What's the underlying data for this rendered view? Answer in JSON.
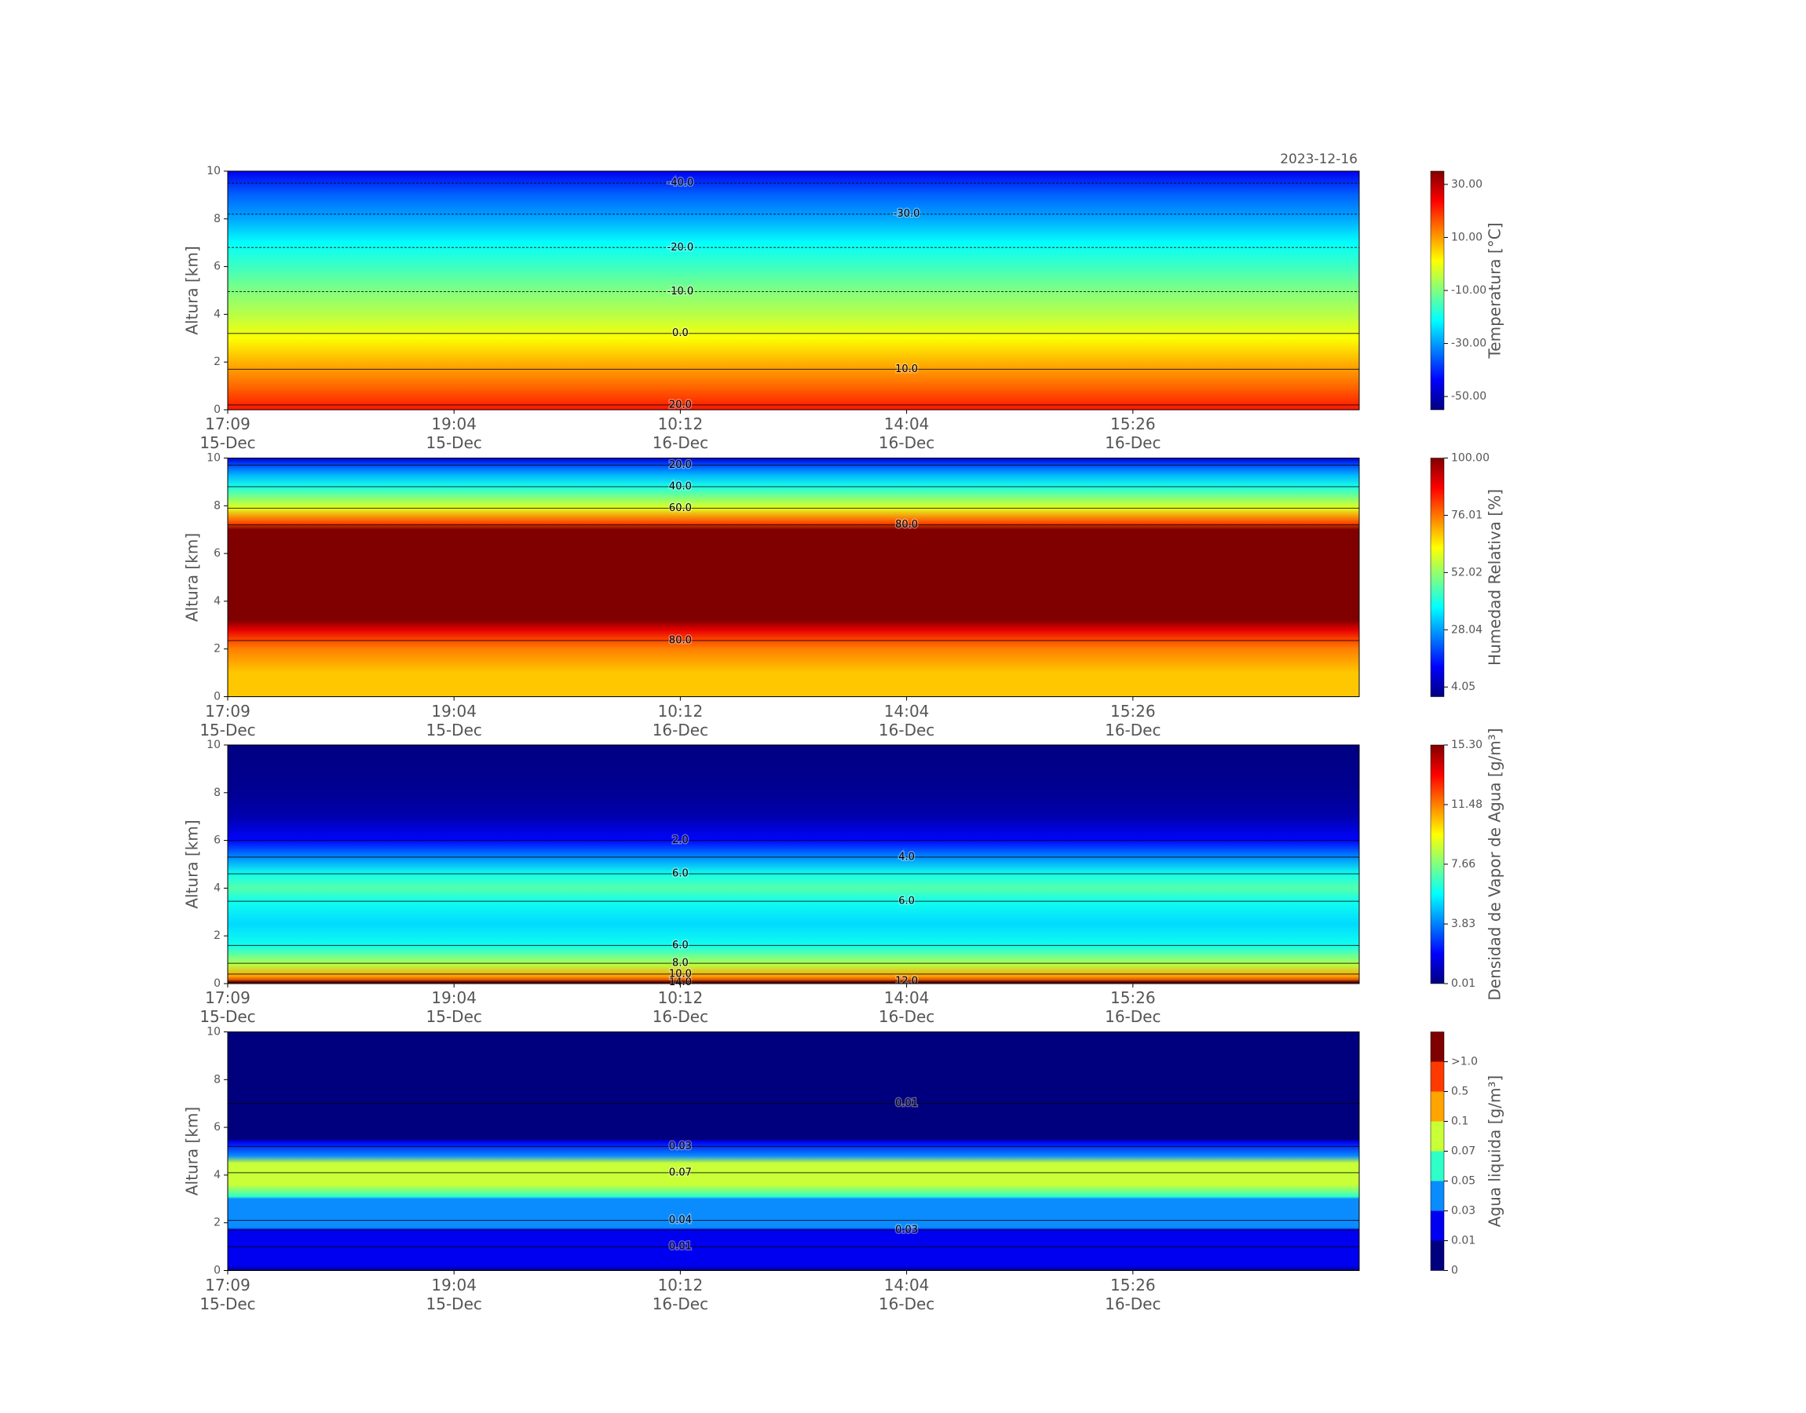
{
  "chart_data": [
    {
      "type": "heatmap",
      "subtitle": "2023-12-16",
      "ylabel": "Altura [km]",
      "categories": [
        "17:09\n15-Dec",
        "19:04\n15-Dec",
        "10:12\n16-Dec",
        "14:04\n16-Dec",
        "15:26\n16-Dec"
      ],
      "ylim": [
        0,
        10
      ],
      "yticks": [
        0,
        2,
        4,
        6,
        8,
        10
      ],
      "colormap": "jet",
      "profile": {
        "heights": [
          0,
          1,
          2,
          3,
          4,
          5,
          6,
          7,
          8,
          9,
          10
        ],
        "values": [
          22,
          14.5,
          8,
          1,
          -5,
          -10,
          -16,
          -21,
          -29,
          -35,
          -45
        ]
      },
      "contours": [
        {
          "level": 20,
          "label": "20.0",
          "height": 0.2
        },
        {
          "level": 10,
          "label": "10.0",
          "height": 1.7
        },
        {
          "level": 0,
          "label": "0.0",
          "height": 3.2
        },
        {
          "level": -10,
          "label": "-10.0",
          "height": 4.95
        },
        {
          "level": -20,
          "label": "-20.0",
          "height": 6.8
        },
        {
          "level": -30,
          "label": "-30.0",
          "height": 8.2
        },
        {
          "level": -40,
          "label": "-40.0",
          "height": 9.5
        }
      ],
      "colorbar": {
        "label": "Temperatura [°C]",
        "clim": [
          -55,
          35
        ],
        "ticks": [
          {
            "value": -50,
            "label": "-50.00"
          },
          {
            "value": -30,
            "label": "-30.00"
          },
          {
            "value": -10,
            "label": "-10.00"
          },
          {
            "value": 10,
            "label": "10.00"
          },
          {
            "value": 30,
            "label": "30.00"
          }
        ]
      }
    },
    {
      "type": "heatmap",
      "ylabel": "Altura [km]",
      "categories": [
        "17:09\n15-Dec",
        "19:04\n15-Dec",
        "10:12\n16-Dec",
        "14:04\n16-Dec",
        "15:26\n16-Dec"
      ],
      "ylim": [
        0,
        10
      ],
      "yticks": [
        0,
        2,
        4,
        6,
        8,
        10
      ],
      "colormap": "jet",
      "profile": {
        "heights": [
          0,
          1,
          2,
          2.35,
          2.8,
          3.2,
          7,
          7.3,
          7.9,
          8.8,
          9.3,
          9.7,
          10
        ],
        "values": [
          68,
          68,
          75,
          80,
          90,
          100,
          100,
          80,
          60,
          40,
          30,
          20,
          8
        ]
      },
      "contours": [
        {
          "level": 80,
          "label": "80.0",
          "height": 2.35
        },
        {
          "level": 80,
          "label": "80.0",
          "height": 7.2
        },
        {
          "level": 60,
          "label": "60.0",
          "height": 7.9
        },
        {
          "level": 40,
          "label": "40.0",
          "height": 8.8
        },
        {
          "level": 20,
          "label": "20.0",
          "height": 9.7
        }
      ],
      "colorbar": {
        "label": "Humedad Relativa [%]",
        "clim": [
          0,
          100
        ],
        "ticks": [
          {
            "value": 4.05,
            "label": "4.05"
          },
          {
            "value": 28.04,
            "label": "28.04"
          },
          {
            "value": 52.02,
            "label": "52.02"
          },
          {
            "value": 76.01,
            "label": "76.01"
          },
          {
            "value": 100,
            "label": "100.00"
          }
        ]
      }
    },
    {
      "type": "heatmap",
      "ylabel": "Altura [km]",
      "categories": [
        "17:09\n15-Dec",
        "19:04\n15-Dec",
        "10:12\n16-Dec",
        "14:04\n16-Dec",
        "15:26\n16-Dec"
      ],
      "ylim": [
        0,
        10
      ],
      "yticks": [
        0,
        2,
        4,
        6,
        8,
        10
      ],
      "colormap": "jet",
      "profile": {
        "heights": [
          0,
          0.3,
          0.8,
          1.6,
          2.5,
          3.45,
          4,
          4.6,
          5.3,
          6,
          7,
          8,
          10
        ],
        "values": [
          14.5,
          11,
          8.5,
          6,
          5.2,
          6,
          7,
          6,
          4,
          2,
          0.7,
          0.3,
          0.05
        ]
      },
      "contours": [
        {
          "level": 14,
          "label": "14.0",
          "height": 0.05
        },
        {
          "level": 12,
          "label": "12.0",
          "height": 0.1
        },
        {
          "level": 10,
          "label": "10.0",
          "height": 0.4
        },
        {
          "level": 8,
          "label": "8.0",
          "height": 0.85
        },
        {
          "level": 6,
          "label": "6.0",
          "height": 1.6
        },
        {
          "level": 6,
          "label": "6.0",
          "height": 3.45
        },
        {
          "level": 6,
          "label": "6.0",
          "height": 4.6
        },
        {
          "level": 4,
          "label": "4.0",
          "height": 5.3
        },
        {
          "level": 2,
          "label": "2.0",
          "height": 6.0
        }
      ],
      "colorbar": {
        "label": "Densidad de Vapor de Agua [g/m³]",
        "clim": [
          0.01,
          15.3
        ],
        "ticks": [
          {
            "value": 0.01,
            "label": "0.01"
          },
          {
            "value": 3.83,
            "label": "3.83"
          },
          {
            "value": 7.66,
            "label": "7.66"
          },
          {
            "value": 11.48,
            "label": "11.48"
          },
          {
            "value": 15.3,
            "label": "15.30"
          }
        ]
      }
    },
    {
      "type": "heatmap",
      "ylabel": "Altura [km]",
      "categories": [
        "17:09\n15-Dec",
        "19:04\n15-Dec",
        "10:12\n16-Dec",
        "14:04\n16-Dec",
        "15:26\n16-Dec"
      ],
      "ylim": [
        0,
        10
      ],
      "yticks": [
        0,
        2,
        4,
        6,
        8,
        10
      ],
      "colormap": "discrete",
      "profile": {
        "heights": [
          0,
          0.2,
          1.7,
          1.8,
          3,
          3.1,
          3.6,
          4,
          4.5,
          4.8,
          5.4,
          5.5,
          7,
          10
        ],
        "values": [
          0.005,
          0.02,
          0.02,
          0.04,
          0.04,
          0.06,
          0.08,
          0.09,
          0.07,
          0.04,
          0.02,
          0.005,
          0.005,
          0.005
        ]
      },
      "contours": [
        {
          "level": 0.01,
          "label": "0.01",
          "height": 1.0
        },
        {
          "level": 0.03,
          "label": "0.03",
          "height": 1.7
        },
        {
          "level": 0.04,
          "label": "0.04",
          "height": 2.1
        },
        {
          "level": 0.07,
          "label": "0.07",
          "height": 4.1
        },
        {
          "level": 0.03,
          "label": "0.03",
          "height": 5.2
        },
        {
          "level": 0.01,
          "label": "0.01",
          "height": 7.0
        }
      ],
      "colorbar": {
        "label": "Agua liquida [g/m³]",
        "colors": [
          "#00007f",
          "#0000f0",
          "#0a8cff",
          "#2effc8",
          "#c8ff36",
          "#ffa400",
          "#ff3a00",
          "#7f0000"
        ],
        "ticks": [
          {
            "value": 0,
            "label": "0"
          },
          {
            "value": 0.01,
            "label": "0.01"
          },
          {
            "value": 0.03,
            "label": "0.03"
          },
          {
            "value": 0.05,
            "label": "0.05"
          },
          {
            "value": 0.07,
            "label": "0.07"
          },
          {
            "value": 0.1,
            "label": "0.1"
          },
          {
            "value": 0.5,
            "label": "0.5"
          },
          {
            "value": 1.0,
            "label": ">1.0"
          }
        ]
      }
    }
  ]
}
